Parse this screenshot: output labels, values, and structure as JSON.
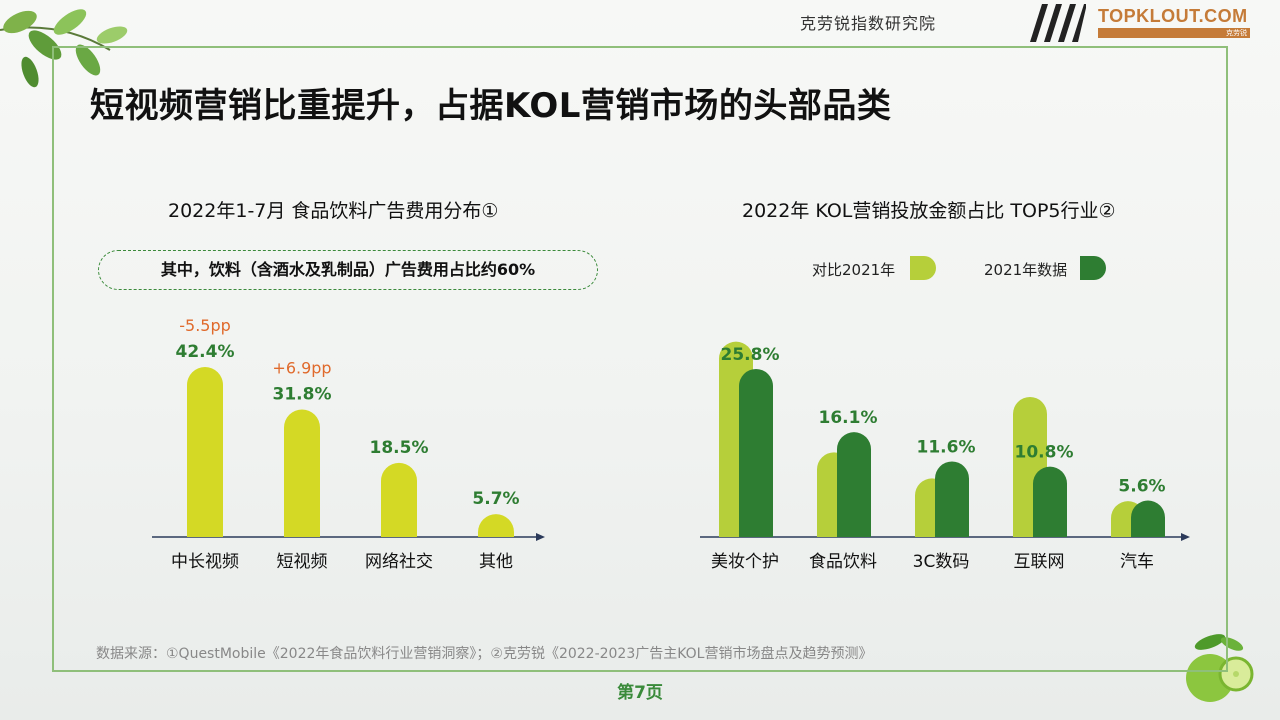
{
  "header": {
    "brand_cn": "克劳锐指数研究院",
    "logo_text": "TOPKLOUT.COM",
    "logo_sub_right": "克劳锐"
  },
  "title": "短视频营销比重提升，占据KOL营销市场的头部品类",
  "left": {
    "subtitle": "2022年1-7月 食品饮料广告费用分布①",
    "note": "其中，饮料（含酒水及乳制品）广告费用占比约60%"
  },
  "right": {
    "subtitle": "2022年 KOL营销投放金额占比 TOP5行业②",
    "legend": [
      {
        "label": "对比2021年",
        "color": "#b6cf3a"
      },
      {
        "label": "2021年数据",
        "color": "#2e7d32"
      }
    ]
  },
  "chart_data": [
    {
      "type": "bar",
      "title": "2022年1-7月 食品饮料广告费用分布①",
      "categories": [
        "中长视频",
        "短视频",
        "网络社交",
        "其他"
      ],
      "values": [
        42.4,
        31.8,
        18.5,
        5.7
      ],
      "value_labels": [
        "42.4%",
        "31.8%",
        "18.5%",
        "5.7%"
      ],
      "change_labels": [
        "-5.5pp",
        "+6.9pp",
        "",
        ""
      ],
      "color": "#d4d925",
      "label_color": "#2e7d32",
      "change_color": "#e06a2c",
      "ylim": [
        0,
        45
      ]
    },
    {
      "type": "bar",
      "title": "2022年 KOL营销投放金额占比 TOP5行业②",
      "categories": [
        "美妆个护",
        "食品饮料",
        "3C数码",
        "互联网",
        "汽车"
      ],
      "series": [
        {
          "name": "对比2021年",
          "values": [
            30.0,
            13.0,
            9.0,
            21.5,
            5.5
          ],
          "color": "#b6cf3a"
        },
        {
          "name": "2021年数据",
          "values": [
            25.8,
            16.1,
            11.6,
            10.8,
            5.6
          ],
          "color": "#2e7d32"
        }
      ],
      "value_labels": [
        "25.8%",
        "16.1%",
        "11.6%",
        "10.8%",
        "5.6%"
      ],
      "label_color": "#2e7d32",
      "ylim": [
        0,
        32
      ]
    }
  ],
  "footer": {
    "source": "数据来源：①QuestMobile《2022年食品饮料行业营销洞察》；②克劳锐《2022-2023广告主KOL营销市场盘点及趋势预测》",
    "page": "第7页"
  }
}
